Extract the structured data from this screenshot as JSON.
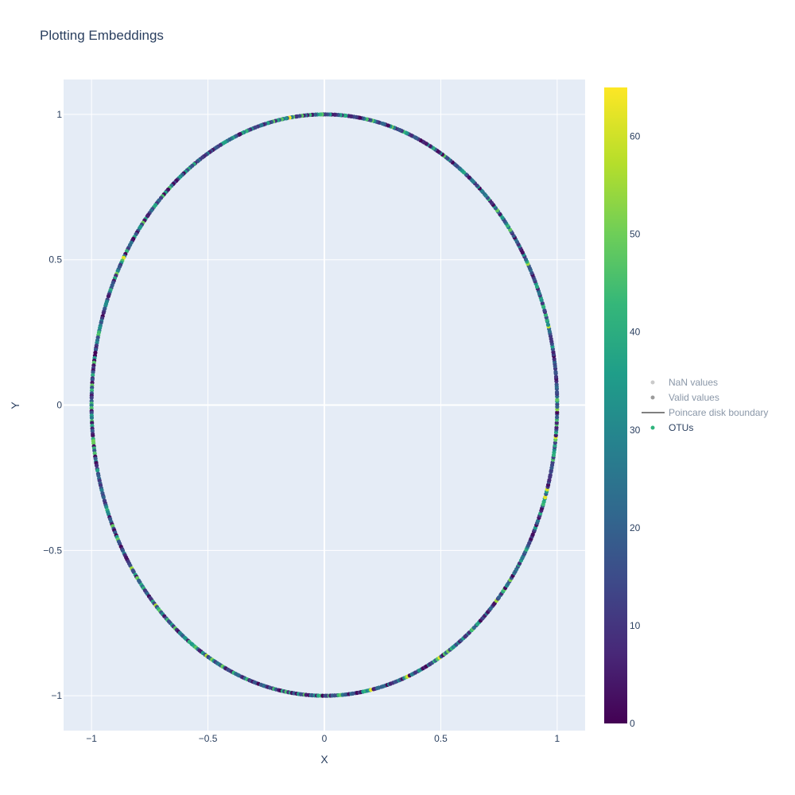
{
  "chart_data": {
    "type": "scatter",
    "title": "Plotting Embeddings",
    "xlabel": "X",
    "ylabel": "Y",
    "xlim": [
      -1.12,
      1.12
    ],
    "ylim": [
      -1.12,
      1.12
    ],
    "xticks": [
      -1,
      -0.5,
      0,
      0.5,
      1
    ],
    "xtick_labels": [
      "−1",
      "−0.5",
      "0",
      "0.5",
      "1"
    ],
    "yticks": [
      -1,
      -0.5,
      0,
      0.5,
      1
    ],
    "ytick_labels": [
      "−1",
      "−0.5",
      "0",
      "0.5",
      "1"
    ],
    "grid": true,
    "background_color": "#e5ecf6",
    "colorscale": "Viridis",
    "colorbar": {
      "range": [
        0,
        65
      ],
      "ticks": [
        0,
        10,
        20,
        30,
        40,
        50,
        60
      ],
      "tick_labels": [
        "0",
        "10",
        "20",
        "30",
        "40",
        "50",
        "60"
      ]
    },
    "legend_position": "right",
    "series": [
      {
        "name": "NaN values",
        "kind": "markers",
        "color": "#b3b3b3",
        "visible": "legendonly"
      },
      {
        "name": "Valid values",
        "kind": "markers",
        "color": "#707070",
        "visible": "legendonly"
      },
      {
        "name": "Poincare disk boundary",
        "kind": "line",
        "color": "#808080",
        "visible": "legendonly",
        "shape": "unit circle x^2 + y^2 = 1"
      },
      {
        "name": "OTUs",
        "kind": "markers",
        "color": "#2fb47c",
        "visible": true,
        "points_description": "points lie on the unit circle x^2 + y^2 = 1, colored by value 0–65",
        "point_count": 720
      }
    ]
  }
}
